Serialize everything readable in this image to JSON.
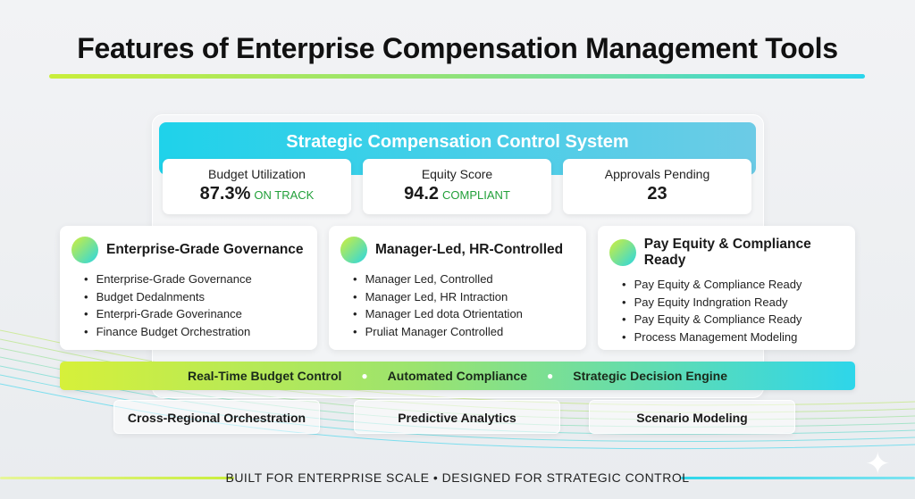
{
  "title": "Features of Enterprise Compensation Management Tools",
  "header": "Strategic Compensation Control System",
  "metrics": [
    {
      "label": "Budget Utilization",
      "value": "87.3%",
      "status": "ON TRACK"
    },
    {
      "label": "Equity Score",
      "value": "94.2",
      "status": "COMPLIANT"
    },
    {
      "label": "Approvals Pending",
      "value": "23",
      "status": ""
    }
  ],
  "cards": [
    {
      "title": "Enterprise-Grade Governance",
      "items": [
        "Enterprise-Grade Governance",
        "Budget Dedalnments",
        "Enterpri-Grade Goverinance",
        "Finance Budget Orchestration"
      ]
    },
    {
      "title": "Manager-Led, HR-Controlled",
      "items": [
        "Manager Led, Controlled",
        "Manager Led, HR Intraction",
        "Manager Led dota Otrientation",
        "Pruliat Manager Controlled"
      ]
    },
    {
      "title": "Pay Equity & Compliance Ready",
      "items": [
        "Pay Equity & Compliance Ready",
        "Pay Equity Indngration Ready",
        "Pay Equity & Compliance Ready",
        "Process Management Modeling"
      ]
    }
  ],
  "band": [
    "Real-Time Budget Control",
    "Automated Compliance",
    "Strategic Decision Engine"
  ],
  "chips": [
    "Cross-Regional Orchestration",
    "Predictive Analytics",
    "Scenario Modeling"
  ],
  "footer": "BUILT FOR ENTERPRISE SCALE • DESIGNED FOR STRATEGIC CONTROL",
  "colors": {
    "accent_lime": "#d2ef3a",
    "accent_cyan": "#22d3ee",
    "status_green": "#22a03a"
  }
}
